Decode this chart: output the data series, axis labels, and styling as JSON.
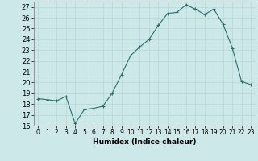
{
  "x": [
    0,
    1,
    2,
    3,
    4,
    5,
    6,
    7,
    8,
    9,
    10,
    11,
    12,
    13,
    14,
    15,
    16,
    17,
    18,
    19,
    20,
    21,
    22,
    23
  ],
  "y": [
    18.5,
    18.4,
    18.3,
    18.7,
    16.2,
    17.5,
    17.6,
    17.8,
    19.0,
    20.7,
    22.5,
    23.3,
    24.0,
    25.3,
    26.4,
    26.5,
    27.2,
    26.8,
    26.3,
    26.8,
    25.4,
    23.2,
    20.1,
    19.8
  ],
  "xlabel": "Humidex (Indice chaleur)",
  "ylim": [
    16,
    27.5
  ],
  "xlim": [
    -0.5,
    23.5
  ],
  "yticks": [
    16,
    17,
    18,
    19,
    20,
    21,
    22,
    23,
    24,
    25,
    26,
    27
  ],
  "xticks": [
    0,
    1,
    2,
    3,
    4,
    5,
    6,
    7,
    8,
    9,
    10,
    11,
    12,
    13,
    14,
    15,
    16,
    17,
    18,
    19,
    20,
    21,
    22,
    23
  ],
  "line_color": "#2d6e6e",
  "marker": "+",
  "marker_size": 3,
  "marker_lw": 0.8,
  "line_width": 0.8,
  "bg_color": "#cce8e8",
  "grid_color": "#b8d8d0",
  "xlabel_fontsize": 6.5,
  "xlabel_fontweight": "bold",
  "tick_fontsize": 5.5,
  "ytick_fontsize": 6.0
}
